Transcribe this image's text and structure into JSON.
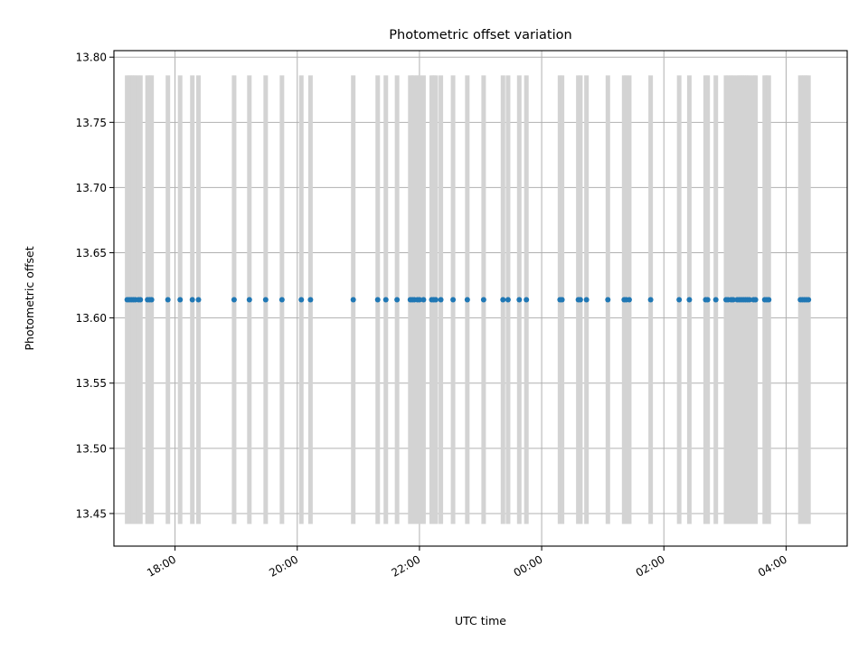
{
  "chart_data": {
    "type": "scatter",
    "title": "Photometric offset variation",
    "xlabel": "UTC time",
    "ylabel": "Photometric offset",
    "grid": true,
    "xlim": [
      "17:00",
      "05:00"
    ],
    "ylim": [
      13.425,
      13.805
    ],
    "x_ticks": [
      "18:00",
      "20:00",
      "22:00",
      "00:00",
      "02:00",
      "04:00"
    ],
    "y_ticks": [
      "13.45",
      "13.50",
      "13.55",
      "13.60",
      "13.65",
      "13.70",
      "13.75",
      "13.80"
    ],
    "colors": {
      "points": "#1f77b4",
      "errorbars": "#d3d3d3",
      "grid": "#b0b0b0"
    },
    "series": [
      {
        "x": [
          "17:13",
          "17:15",
          "17:17",
          "17:19",
          "17:21",
          "17:24",
          "17:26",
          "17:33",
          "17:35",
          "17:37",
          "17:53",
          "18:05",
          "18:17",
          "18:23",
          "18:58",
          "19:13",
          "19:29",
          "19:45",
          "20:04",
          "20:13",
          "20:55",
          "21:19",
          "21:27",
          "21:38",
          "21:51",
          "21:53",
          "21:55",
          "21:58",
          "22:00",
          "22:04",
          "22:12",
          "22:14",
          "22:16",
          "22:21",
          "22:33",
          "22:47",
          "23:03",
          "23:22",
          "23:27",
          "23:38",
          "23:45",
          "00:18",
          "00:20",
          "00:36",
          "00:38",
          "00:44",
          "01:05",
          "01:21",
          "01:23",
          "01:26",
          "01:47",
          "02:15",
          "02:25",
          "02:41",
          "02:43",
          "02:51",
          "03:01",
          "03:03",
          "03:06",
          "03:08",
          "03:12",
          "03:14",
          "03:16",
          "03:18",
          "03:20",
          "03:22",
          "03:24",
          "03:28",
          "03:30",
          "03:39",
          "03:41",
          "03:43",
          "04:14",
          "04:16",
          "04:18",
          "04:20",
          "04:22"
        ],
        "y": 13.614,
        "yerr": 0.172
      }
    ]
  }
}
